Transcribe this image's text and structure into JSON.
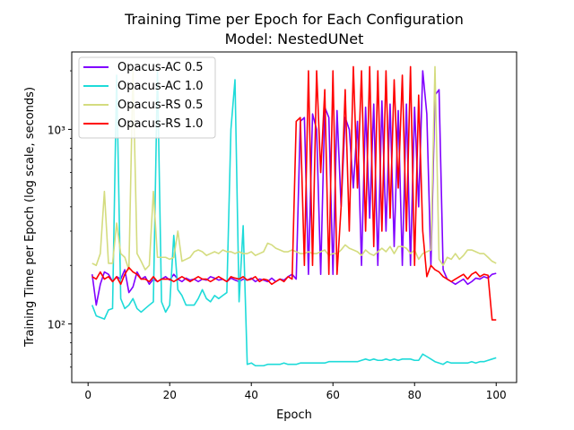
{
  "chart_data": {
    "type": "line",
    "title": "Training Time per Epoch for Each Configuration",
    "subtitle": "Model: NestedUNet",
    "xlabel": "Epoch",
    "ylabel": "Training Time per Epoch (log scale, seconds)",
    "yscale": "log",
    "xlim": [
      -4,
      105
    ],
    "ylim": [
      50,
      2500
    ],
    "xticks": [
      0,
      20,
      40,
      60,
      80,
      100
    ],
    "yticks": [
      100,
      1000
    ],
    "ytick_labels": [
      "10²",
      "10³"
    ],
    "grid": false,
    "legend_placement": "top-left",
    "x": [
      1,
      2,
      3,
      4,
      5,
      6,
      7,
      8,
      9,
      10,
      11,
      12,
      13,
      14,
      15,
      16,
      17,
      18,
      19,
      20,
      21,
      22,
      23,
      24,
      25,
      26,
      27,
      28,
      29,
      30,
      31,
      32,
      33,
      34,
      35,
      36,
      37,
      38,
      39,
      40,
      41,
      42,
      43,
      44,
      45,
      46,
      47,
      48,
      49,
      50,
      51,
      52,
      53,
      54,
      55,
      56,
      57,
      58,
      59,
      60,
      61,
      62,
      63,
      64,
      65,
      66,
      67,
      68,
      69,
      70,
      71,
      72,
      73,
      74,
      75,
      76,
      77,
      78,
      79,
      80,
      81,
      82,
      83,
      84,
      85,
      86,
      87,
      88,
      89,
      90,
      91,
      92,
      93,
      94,
      95,
      96,
      97,
      98,
      99,
      100
    ],
    "series": [
      {
        "name": "Opacus-AC 0.5",
        "color": "#8000ff",
        "values": [
          180,
          125,
          160,
          185,
          180,
          165,
          175,
          170,
          190,
          145,
          155,
          185,
          170,
          175,
          160,
          170,
          165,
          170,
          175,
          168,
          180,
          170,
          165,
          172,
          168,
          170,
          165,
          170,
          168,
          175,
          172,
          168,
          170,
          165,
          172,
          168,
          165,
          170,
          168,
          172,
          165,
          170,
          168,
          165,
          172,
          165,
          170,
          168,
          175,
          180,
          170,
          1100,
          1150,
          180,
          1200,
          1000,
          180,
          1300,
          1150,
          180,
          1250,
          400,
          1150,
          1000,
          500,
          1100,
          200,
          1300,
          350,
          1350,
          200,
          1400,
          300,
          1350,
          250,
          1250,
          200,
          1350,
          200,
          1300,
          400,
          2000,
          1200,
          200,
          1500,
          1600,
          190,
          170,
          165,
          160,
          165,
          170,
          160,
          165,
          172,
          170,
          175,
          172,
          180,
          182
        ]
      },
      {
        "name": "Opacus-AC 1.0",
        "color": "#1edbd9",
        "values": [
          125,
          110,
          108,
          106,
          118,
          120,
          1900,
          135,
          120,
          125,
          135,
          120,
          115,
          120,
          125,
          130,
          2000,
          130,
          115,
          125,
          285,
          150,
          140,
          125,
          125,
          125,
          135,
          150,
          135,
          130,
          140,
          135,
          140,
          145,
          1000,
          1800,
          130,
          320,
          62,
          63,
          61,
          61,
          61,
          62,
          62,
          62,
          62,
          63,
          62,
          62,
          62,
          63,
          63,
          63,
          63,
          63,
          63,
          63,
          64,
          64,
          64,
          64,
          64,
          64,
          64,
          64,
          65,
          66,
          65,
          66,
          65,
          65,
          66,
          65,
          66,
          65,
          66,
          66,
          66,
          65,
          65,
          70,
          68,
          66,
          64,
          63,
          62,
          64,
          63,
          63,
          63,
          63,
          63,
          64,
          63,
          64,
          64,
          65,
          66,
          67
        ]
      },
      {
        "name": "Opacus-RS 0.5",
        "color": "#d4dc7f",
        "values": [
          205,
          200,
          230,
          480,
          205,
          205,
          330,
          230,
          220,
          190,
          2000,
          230,
          210,
          190,
          200,
          480,
          220,
          220,
          220,
          215,
          220,
          300,
          210,
          215,
          220,
          235,
          240,
          235,
          225,
          230,
          235,
          230,
          240,
          235,
          235,
          230,
          235,
          230,
          230,
          235,
          225,
          230,
          235,
          260,
          255,
          245,
          240,
          235,
          235,
          240,
          235,
          230,
          230,
          235,
          230,
          230,
          235,
          240,
          225,
          230,
          230,
          240,
          255,
          245,
          240,
          235,
          225,
          240,
          230,
          225,
          235,
          245,
          235,
          250,
          230,
          250,
          250,
          245,
          230,
          240,
          215,
          230,
          235,
          240,
          2100,
          215,
          200,
          220,
          215,
          230,
          215,
          225,
          240,
          240,
          235,
          230,
          230,
          220,
          210,
          205
        ]
      },
      {
        "name": "Opacus-RS 1.0",
        "color": "#ff0000",
        "values": [
          175,
          170,
          185,
          170,
          175,
          165,
          175,
          160,
          180,
          195,
          185,
          180,
          170,
          170,
          165,
          175,
          165,
          170,
          170,
          170,
          165,
          170,
          175,
          170,
          165,
          170,
          175,
          170,
          170,
          165,
          170,
          175,
          170,
          165,
          175,
          172,
          170,
          175,
          168,
          170,
          175,
          165,
          170,
          168,
          160,
          165,
          170,
          165,
          175,
          170,
          1100,
          1150,
          200,
          2000,
          200,
          2000,
          600,
          1600,
          180,
          2000,
          180,
          400,
          1600,
          300,
          2100,
          500,
          2000,
          300,
          2100,
          250,
          2000,
          300,
          2000,
          350,
          1800,
          500,
          1900,
          300,
          2100,
          200,
          1500,
          300,
          175,
          200,
          190,
          185,
          175,
          170,
          165,
          170,
          175,
          180,
          170,
          180,
          185,
          175,
          180,
          178,
          105,
          105
        ]
      }
    ]
  }
}
